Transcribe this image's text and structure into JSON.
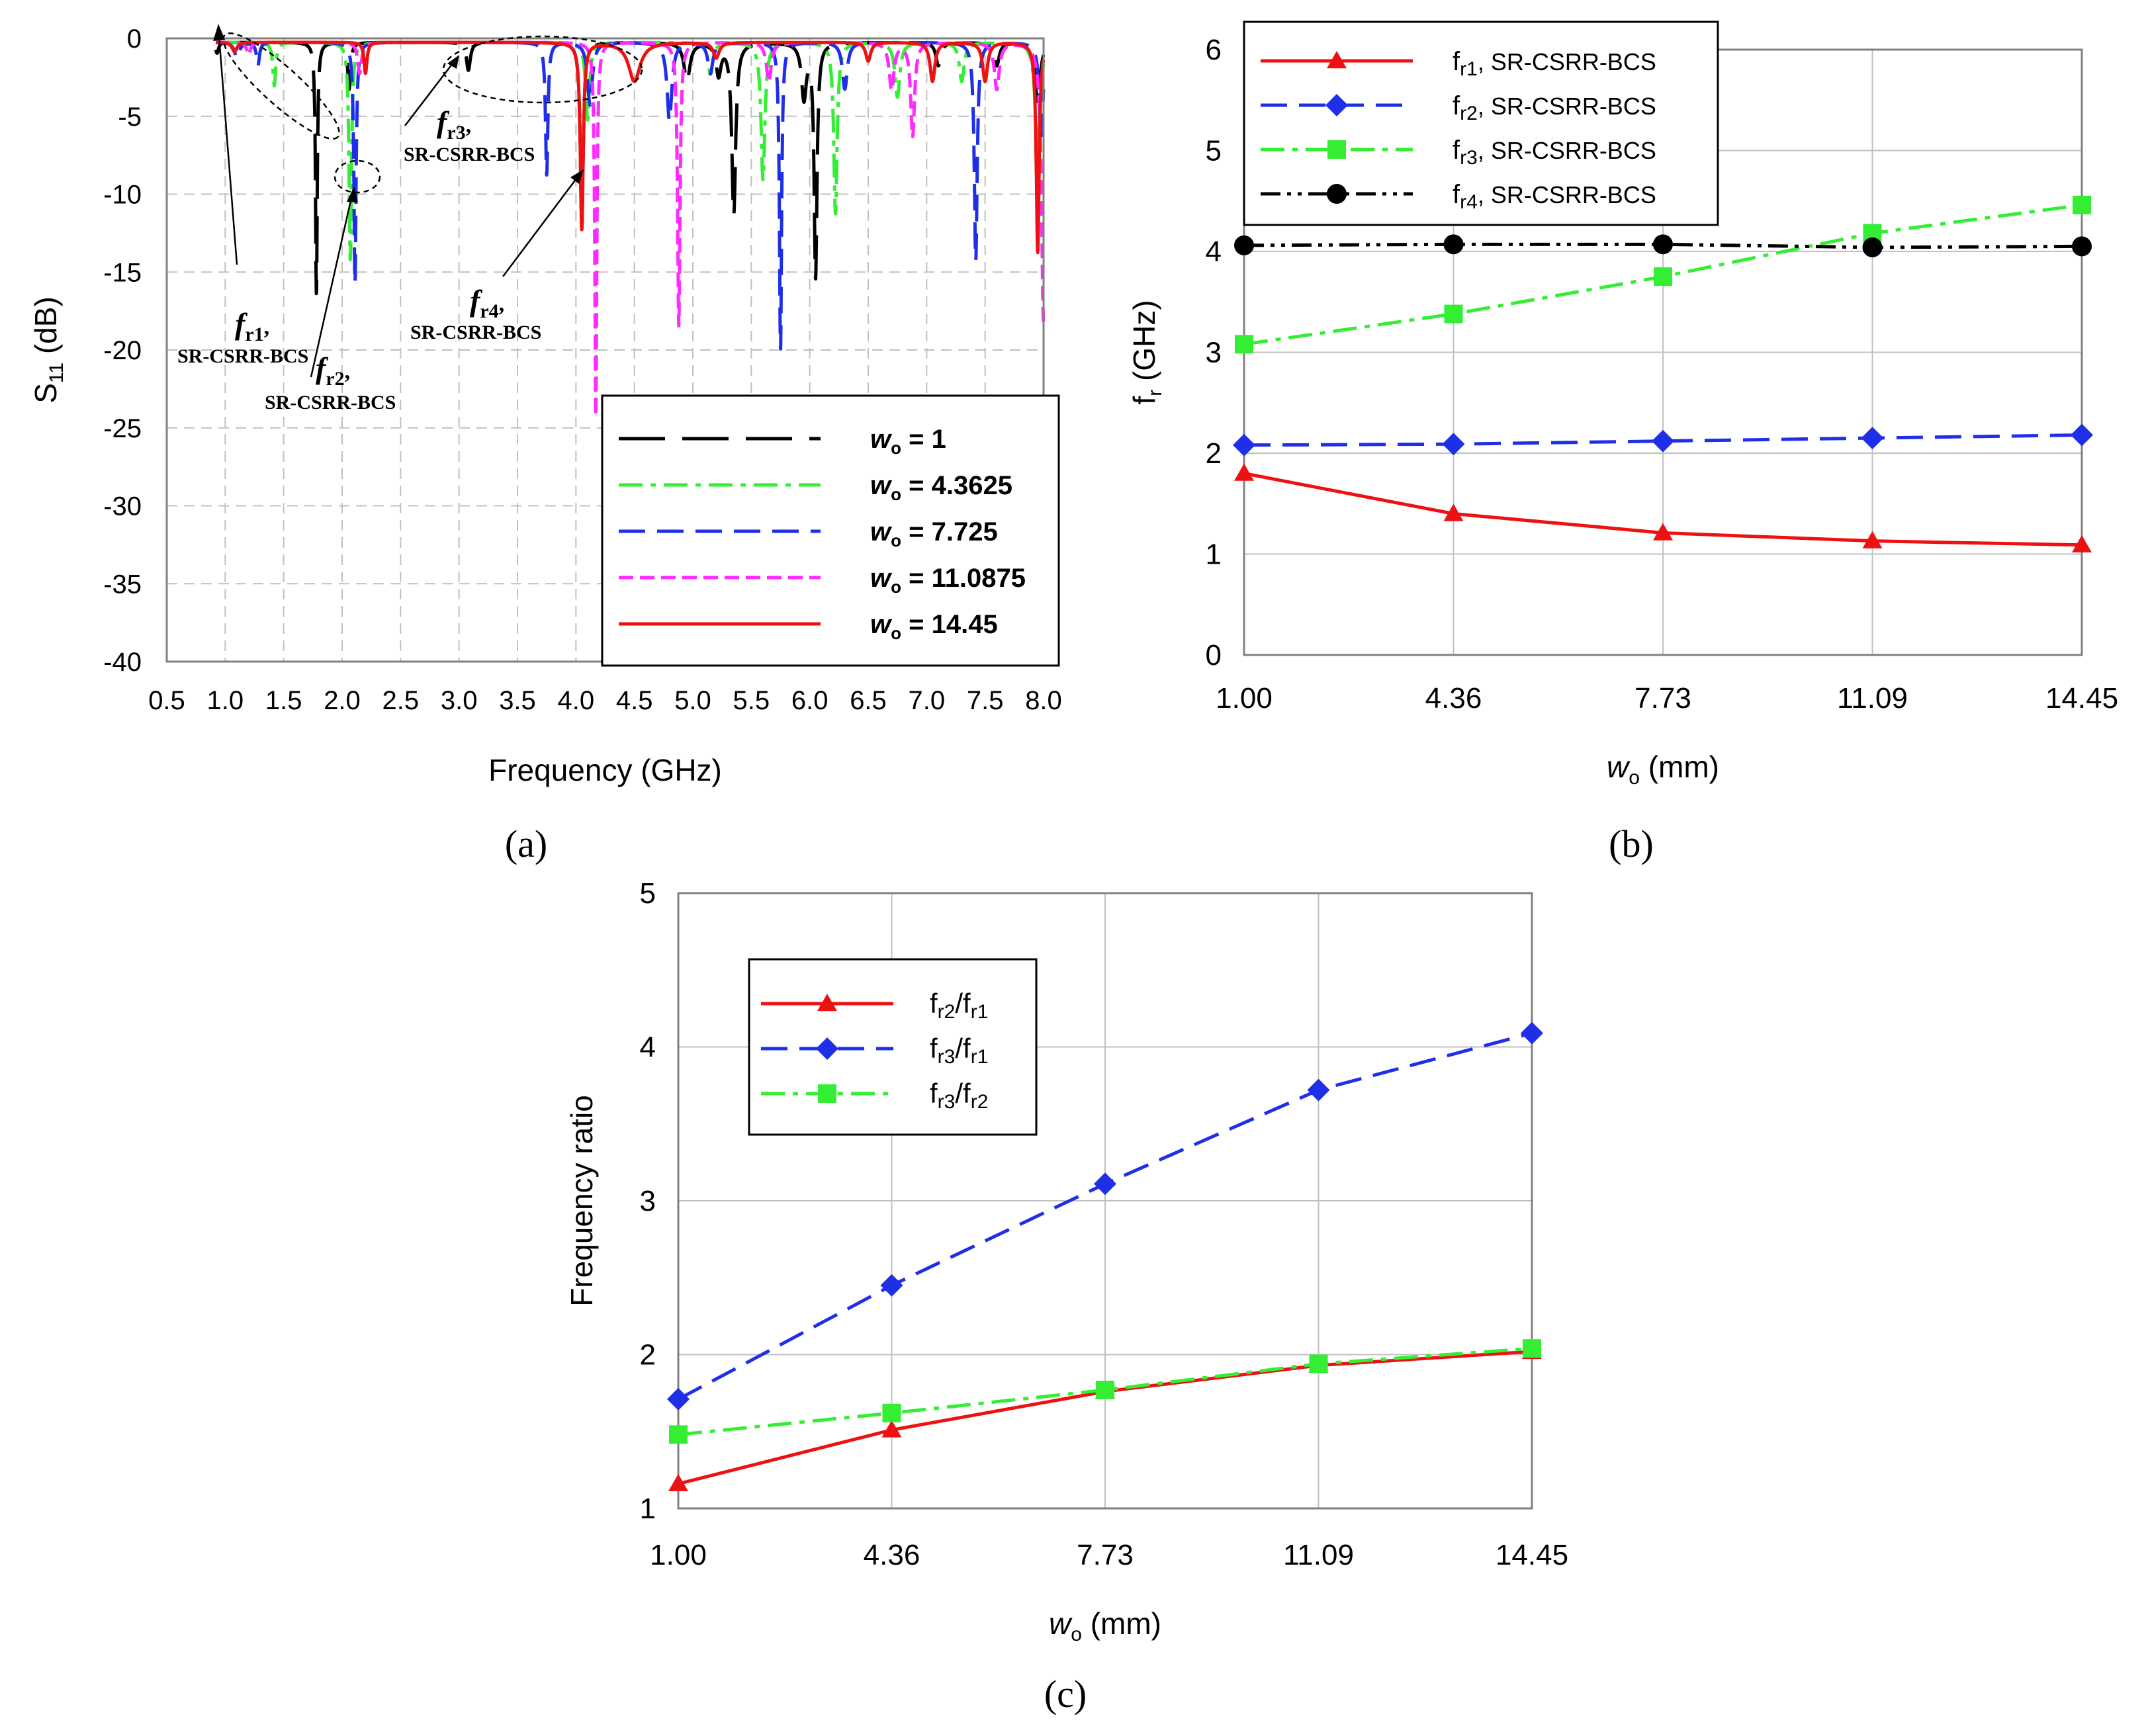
{
  "colors": {
    "black": "#000000",
    "green": "#33ee33",
    "blue": "#1f2fe8",
    "magenta": "#ff2aff",
    "red": "#ee1111",
    "grid": "#c0c0c0",
    "plot_border": "#808080"
  },
  "chart_data": [
    {
      "id": "a",
      "panel_label": "(a)",
      "type": "line",
      "title": "",
      "xlabel": "Frequency (GHz)",
      "ylabel_main": "S",
      "ylabel_sub": "11",
      "ylabel_tail": " (dB)",
      "xlim": [
        0.5,
        8.0
      ],
      "ylim": [
        -40,
        0
      ],
      "x_ticks": [
        "0.5",
        "1.0",
        "1.5",
        "2.0",
        "2.5",
        "3.0",
        "3.5",
        "4.0",
        "4.5",
        "5.0",
        "5.5",
        "6.0",
        "6.5",
        "7.0",
        "7.5",
        "8.0"
      ],
      "y_ticks": [
        "0",
        "-5",
        "-10",
        "-15",
        "-20",
        "-25",
        "-30",
        "-35",
        "-40"
      ],
      "grid": true,
      "legend_position": "bottom-right",
      "series": [
        {
          "name": "wo = 1",
          "legend_prefix": "w",
          "legend_sub": "o",
          "legend_value": " = 1",
          "color": "#000000",
          "dash": "long-dash",
          "dips": [
            [
              0.93,
              -0.7,
              0.03
            ],
            [
              1.78,
              -16.3,
              0.018
            ],
            [
              2.06,
              -3,
              0.03
            ],
            [
              3.08,
              -1.8,
              0.04
            ],
            [
              4.05,
              -12,
              0.03
            ],
            [
              4.95,
              -2.5,
              0.06
            ],
            [
              5.22,
              -2,
              0.05
            ],
            [
              5.35,
              -11,
              0.04
            ],
            [
              5.95,
              -3.5,
              0.05
            ],
            [
              6.05,
              -15,
              0.03
            ],
            [
              7.1,
              -1.5,
              0.05
            ],
            [
              7.6,
              -1.5,
              0.05
            ],
            [
              7.95,
              -4,
              0.05
            ]
          ]
        },
        {
          "name": "wo = 4.3625",
          "legend_prefix": "w",
          "legend_sub": "o",
          "legend_value": " = 4.3625",
          "color": "#33ee33",
          "dash": "dash-dot",
          "dips": [
            [
              1.42,
              -2.8,
              0.03
            ],
            [
              2.07,
              -14,
              0.025
            ],
            [
              4.1,
              -5,
              0.04
            ],
            [
              5.15,
              -2,
              0.05
            ],
            [
              5.6,
              -8.8,
              0.04
            ],
            [
              6.22,
              -11,
              0.035
            ],
            [
              6.75,
              -3.5,
              0.05
            ],
            [
              7.3,
              -2.5,
              0.05
            ],
            [
              7.95,
              -7,
              0.05
            ]
          ]
        },
        {
          "name": "wo = 7.725",
          "legend_prefix": "w",
          "legend_sub": "o",
          "legend_value": " = 7.725",
          "color": "#1f2fe8",
          "dash": "dash",
          "dips": [
            [
              1.1,
              -1,
              0.05
            ],
            [
              1.28,
              -1.5,
              0.03
            ],
            [
              2.11,
              -15.5,
              0.022
            ],
            [
              3.75,
              -8.5,
              0.025
            ],
            [
              4.12,
              -4,
              0.05
            ],
            [
              4.8,
              -5,
              0.05
            ],
            [
              5.15,
              -2,
              0.05
            ],
            [
              5.75,
              -19.8,
              0.022
            ],
            [
              6.3,
              -3,
              0.05
            ],
            [
              7.42,
              -14,
              0.03
            ],
            [
              7.98,
              -6,
              0.04
            ]
          ]
        },
        {
          "name": "wo = 11.0875",
          "legend_prefix": "w",
          "legend_sub": "o",
          "legend_value": " = 11.0875",
          "color": "#ff2aff",
          "dash": "short-dash",
          "dips": [
            [
              1.2,
              -0.8,
              0.04
            ],
            [
              2.15,
              -2,
              0.04
            ],
            [
              4.17,
              -24,
              0.02
            ],
            [
              4.88,
              -18.2,
              0.025
            ],
            [
              5.65,
              -2.5,
              0.05
            ],
            [
              6.7,
              -3,
              0.05
            ],
            [
              6.88,
              -6,
              0.04
            ],
            [
              7.6,
              -3,
              0.05
            ],
            [
              8.0,
              -18,
              0.04
            ]
          ]
        },
        {
          "name": "wo = 14.45",
          "legend_prefix": "w",
          "legend_sub": "o",
          "legend_value": " = 14.45",
          "color": "#ee1111",
          "dash": "solid",
          "dips": [
            [
              1.08,
              -0.6,
              0.05
            ],
            [
              2.2,
              -2,
              0.03
            ],
            [
              4.05,
              -12,
              0.03
            ],
            [
              4.5,
              -2.5,
              0.12
            ],
            [
              5.2,
              -1,
              0.06
            ],
            [
              6.5,
              -1.2,
              0.05
            ],
            [
              7.05,
              -2.5,
              0.05
            ],
            [
              7.5,
              -2.5,
              0.05
            ],
            [
              7.95,
              -13.5,
              0.03
            ]
          ]
        }
      ],
      "annotations": [
        {
          "main": "f",
          "sub": "r1",
          "tail": ",",
          "line2": "SR-CSRR-BCS"
        },
        {
          "main": "f",
          "sub": "r2",
          "tail": ",",
          "line2": "SR-CSRR-BCS"
        },
        {
          "main": "f",
          "sub": "r3",
          "tail": ",",
          "line2": "SR-CSRR-BCS"
        },
        {
          "main": "f",
          "sub": "r4",
          "tail": ",",
          "line2": "SR-CSRR-BCS"
        }
      ]
    },
    {
      "id": "b",
      "panel_label": "(b)",
      "type": "line",
      "title": "",
      "xlabel_prefix": "w",
      "xlabel_sub": "o",
      "xlabel_tail": " (mm)",
      "ylabel_main": "f",
      "ylabel_sub": "r",
      "ylabel_tail": " (GHz)",
      "categories": [
        "1.00",
        "4.36",
        "7.73",
        "11.09",
        "14.45"
      ],
      "ylim": [
        0,
        6
      ],
      "y_ticks": [
        "0",
        "1",
        "2",
        "3",
        "4",
        "5",
        "6"
      ],
      "grid": true,
      "legend_position": "top-left",
      "series": [
        {
          "name": "fr1, SR-CSRR-BCS",
          "legend_main": "f",
          "legend_sub": "r1",
          "legend_tail": ", SR-CSRR-BCS",
          "color": "#ee1111",
          "dash": "solid",
          "marker": "triangle",
          "values": [
            1.8,
            1.4,
            1.21,
            1.13,
            1.09
          ]
        },
        {
          "name": "fr2, SR-CSRR-BCS",
          "legend_main": "f",
          "legend_sub": "r2",
          "legend_tail": ", SR-CSRR-BCS",
          "color": "#1f2fe8",
          "dash": "dash",
          "marker": "diamond",
          "values": [
            2.08,
            2.09,
            2.12,
            2.15,
            2.18
          ]
        },
        {
          "name": "fr3, SR-CSRR-BCS",
          "legend_main": "f",
          "legend_sub": "r3",
          "legend_tail": ", SR-CSRR-BCS",
          "color": "#33ee33",
          "dash": "dash-dot",
          "marker": "square",
          "values": [
            3.08,
            3.38,
            3.75,
            4.18,
            4.46
          ]
        },
        {
          "name": "fr4, SR-CSRR-BCS",
          "legend_main": "f",
          "legend_sub": "r4",
          "legend_tail": ", SR-CSRR-BCS",
          "color": "#000000",
          "dash": "dash-dot-dot",
          "marker": "circle",
          "values": [
            4.06,
            4.07,
            4.07,
            4.04,
            4.05
          ]
        }
      ]
    },
    {
      "id": "c",
      "panel_label": "(c)",
      "type": "line",
      "title": "",
      "xlabel_prefix": "w",
      "xlabel_sub": "o",
      "xlabel_tail": " (mm)",
      "ylabel": "Frequency ratio",
      "categories": [
        "1.00",
        "4.36",
        "7.73",
        "11.09",
        "14.45"
      ],
      "ylim": [
        1,
        5
      ],
      "y_ticks": [
        "1",
        "2",
        "3",
        "4",
        "5"
      ],
      "grid": true,
      "legend_position": "top-left",
      "series": [
        {
          "name": "fr2/fr1",
          "parts": [
            "f",
            "r2",
            "/f",
            "r1"
          ],
          "color": "#ee1111",
          "dash": "solid",
          "marker": "triangle",
          "values": [
            1.16,
            1.51,
            1.76,
            1.93,
            2.02
          ]
        },
        {
          "name": "fr3/fr1",
          "parts": [
            "f",
            "r3",
            "/f",
            "r1"
          ],
          "color": "#1f2fe8",
          "dash": "dash",
          "marker": "diamond",
          "values": [
            1.71,
            2.45,
            3.11,
            3.72,
            4.09
          ]
        },
        {
          "name": "fr3/fr2",
          "parts": [
            "f",
            "r3",
            "/f",
            "r2"
          ],
          "color": "#33ee33",
          "dash": "dash-dot",
          "marker": "square",
          "values": [
            1.48,
            1.62,
            1.77,
            1.94,
            2.04
          ]
        }
      ]
    }
  ]
}
